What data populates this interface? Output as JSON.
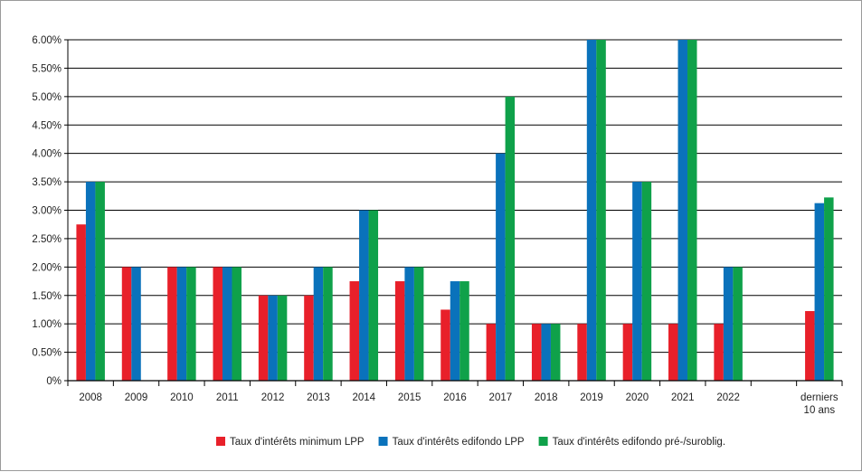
{
  "chart_data": {
    "type": "bar",
    "title": "",
    "xlabel": "",
    "ylabel": "",
    "ylim": [
      0,
      6.0
    ],
    "yticks": [
      "0%",
      "0.50%",
      "1.00%",
      "1.50%",
      "2.00%",
      "2.50%",
      "3.00%",
      "3.50%",
      "4.00%",
      "4.50%",
      "5.00%",
      "5.50%",
      "6.00%"
    ],
    "grid": true,
    "legend_position": "bottom",
    "categories": [
      {
        "label": "2008",
        "sublabel": ""
      },
      {
        "label": "2009",
        "sublabel": ""
      },
      {
        "label": "2010",
        "sublabel": ""
      },
      {
        "label": "2011",
        "sublabel": ""
      },
      {
        "label": "2012",
        "sublabel": ""
      },
      {
        "label": "2013",
        "sublabel": ""
      },
      {
        "label": "2014",
        "sublabel": ""
      },
      {
        "label": "2015",
        "sublabel": ""
      },
      {
        "label": "2016",
        "sublabel": ""
      },
      {
        "label": "2017",
        "sublabel": ""
      },
      {
        "label": "2018",
        "sublabel": ""
      },
      {
        "label": "2019",
        "sublabel": ""
      },
      {
        "label": "2020",
        "sublabel": ""
      },
      {
        "label": "2021",
        "sublabel": ""
      },
      {
        "label": "2022",
        "sublabel": ""
      },
      {
        "label": "",
        "sublabel": ""
      },
      {
        "label": "derniers",
        "sublabel": "10 ans"
      }
    ],
    "series": [
      {
        "name": "Taux d'intérêts minimum LPP",
        "color": "#e8202a",
        "values": [
          2.75,
          2.0,
          2.0,
          2.0,
          1.5,
          1.5,
          1.75,
          1.75,
          1.25,
          1.0,
          1.0,
          1.0,
          1.0,
          1.0,
          1.0,
          null,
          1.225
        ]
      },
      {
        "name": "Taux d'intérêts edifondo LPP",
        "color": "#0a72bb",
        "values": [
          3.5,
          2.0,
          2.0,
          2.0,
          1.5,
          2.0,
          3.0,
          2.0,
          1.75,
          4.0,
          1.0,
          6.0,
          3.5,
          6.0,
          2.0,
          null,
          3.125
        ]
      },
      {
        "name": "Taux d'intérêts edifondo pré-/suroblig.",
        "color": "#0fa14a",
        "values": [
          3.5,
          null,
          2.0,
          2.0,
          1.5,
          2.0,
          3.0,
          2.0,
          1.75,
          5.0,
          1.0,
          6.0,
          3.5,
          6.0,
          2.0,
          null,
          3.225
        ]
      }
    ]
  }
}
